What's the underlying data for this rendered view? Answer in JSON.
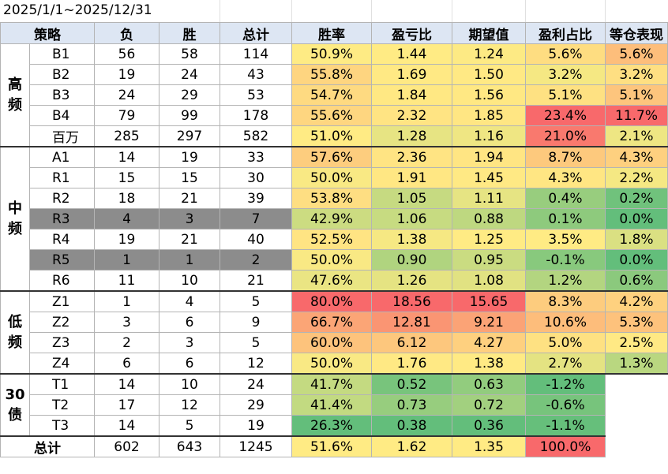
{
  "date_range": "2025/1/1~2025/12/31",
  "headers": [
    "策略",
    "负",
    "胜",
    "总计",
    "胜率",
    "盈亏比",
    "期望值",
    "盈利占比",
    "等仓表现"
  ],
  "groups": [
    {
      "label": "高频",
      "rows": [
        {
          "name": "B1",
          "loss": "56",
          "win": "58",
          "total": "114",
          "winrate": "50.9%",
          "ratio": "1.44",
          "exp": "1.24",
          "share": "5.6%",
          "equal": "5.6%"
        },
        {
          "name": "B2",
          "loss": "19",
          "win": "24",
          "total": "43",
          "winrate": "55.8%",
          "ratio": "1.69",
          "exp": "1.50",
          "share": "3.2%",
          "equal": "3.2%"
        },
        {
          "name": "B3",
          "loss": "24",
          "win": "29",
          "total": "53",
          "winrate": "54.7%",
          "ratio": "1.84",
          "exp": "1.56",
          "share": "5.1%",
          "equal": "5.1%"
        },
        {
          "name": "B4",
          "loss": "79",
          "win": "99",
          "total": "178",
          "winrate": "55.6%",
          "ratio": "2.32",
          "exp": "1.85",
          "share": "23.4%",
          "equal": "11.7%"
        },
        {
          "name": "百万",
          "loss": "285",
          "win": "297",
          "total": "582",
          "winrate": "51.0%",
          "ratio": "1.28",
          "exp": "1.16",
          "share": "21.0%",
          "equal": "2.1%"
        }
      ]
    },
    {
      "label": "中频",
      "rows": [
        {
          "name": "A1",
          "loss": "14",
          "win": "19",
          "total": "33",
          "winrate": "57.6%",
          "ratio": "2.36",
          "exp": "1.94",
          "share": "8.7%",
          "equal": "4.3%"
        },
        {
          "name": "R1",
          "loss": "15",
          "win": "15",
          "total": "30",
          "winrate": "50.0%",
          "ratio": "1.91",
          "exp": "1.45",
          "share": "4.3%",
          "equal": "2.2%"
        },
        {
          "name": "R2",
          "loss": "18",
          "win": "21",
          "total": "39",
          "winrate": "53.8%",
          "ratio": "1.05",
          "exp": "1.11",
          "share": "0.4%",
          "equal": "0.2%"
        },
        {
          "name": "R3",
          "loss": "4",
          "win": "3",
          "total": "7",
          "winrate": "42.9%",
          "ratio": "1.06",
          "exp": "0.88",
          "share": "0.1%",
          "equal": "0.0%"
        },
        {
          "name": "R4",
          "loss": "19",
          "win": "21",
          "total": "40",
          "winrate": "52.5%",
          "ratio": "1.38",
          "exp": "1.25",
          "share": "3.5%",
          "equal": "1.8%"
        },
        {
          "name": "R5",
          "loss": "1",
          "win": "1",
          "total": "2",
          "winrate": "50.0%",
          "ratio": "0.90",
          "exp": "0.95",
          "share": "-0.1%",
          "equal": "0.0%"
        },
        {
          "name": "R6",
          "loss": "11",
          "win": "10",
          "total": "21",
          "winrate": "47.6%",
          "ratio": "1.26",
          "exp": "1.08",
          "share": "1.2%",
          "equal": "0.6%"
        }
      ]
    },
    {
      "label": "低频",
      "rows": [
        {
          "name": "Z1",
          "loss": "1",
          "win": "4",
          "total": "5",
          "winrate": "80.0%",
          "ratio": "18.56",
          "exp": "15.65",
          "share": "8.3%",
          "equal": "4.2%"
        },
        {
          "name": "Z2",
          "loss": "3",
          "win": "6",
          "total": "9",
          "winrate": "66.7%",
          "ratio": "12.81",
          "exp": "9.21",
          "share": "10.6%",
          "equal": "5.3%"
        },
        {
          "name": "Z3",
          "loss": "2",
          "win": "3",
          "total": "5",
          "winrate": "60.0%",
          "ratio": "6.12",
          "exp": "4.27",
          "share": "5.0%",
          "equal": "2.5%"
        },
        {
          "name": "Z4",
          "loss": "6",
          "win": "6",
          "total": "12",
          "winrate": "50.0%",
          "ratio": "1.76",
          "exp": "1.38",
          "share": "2.7%",
          "equal": "1.3%"
        }
      ]
    },
    {
      "label": "30债",
      "rows": [
        {
          "name": "T1",
          "loss": "14",
          "win": "10",
          "total": "24",
          "winrate": "41.7%",
          "ratio": "0.52",
          "exp": "0.63",
          "share": "-1.2%",
          "equal": ""
        },
        {
          "name": "T2",
          "loss": "17",
          "win": "12",
          "total": "29",
          "winrate": "41.4%",
          "ratio": "0.73",
          "exp": "0.72",
          "share": "-0.6%",
          "equal": ""
        },
        {
          "name": "T3",
          "loss": "14",
          "win": "5",
          "total": "19",
          "winrate": "26.3%",
          "ratio": "0.38",
          "exp": "0.36",
          "share": "-1.1%",
          "equal": ""
        }
      ]
    }
  ],
  "total": {
    "label": "总计",
    "loss": "602",
    "win": "643",
    "total": "1245",
    "winrate": "51.6%",
    "ratio": "1.62",
    "exp": "1.35",
    "share": "100.0%"
  },
  "colors": {
    "header_bg": "#dde6f3",
    "gray_row": "#8c8c8c",
    "best": "#f8696b",
    "mid": "#ffeb84",
    "worst": "#63be7b"
  }
}
